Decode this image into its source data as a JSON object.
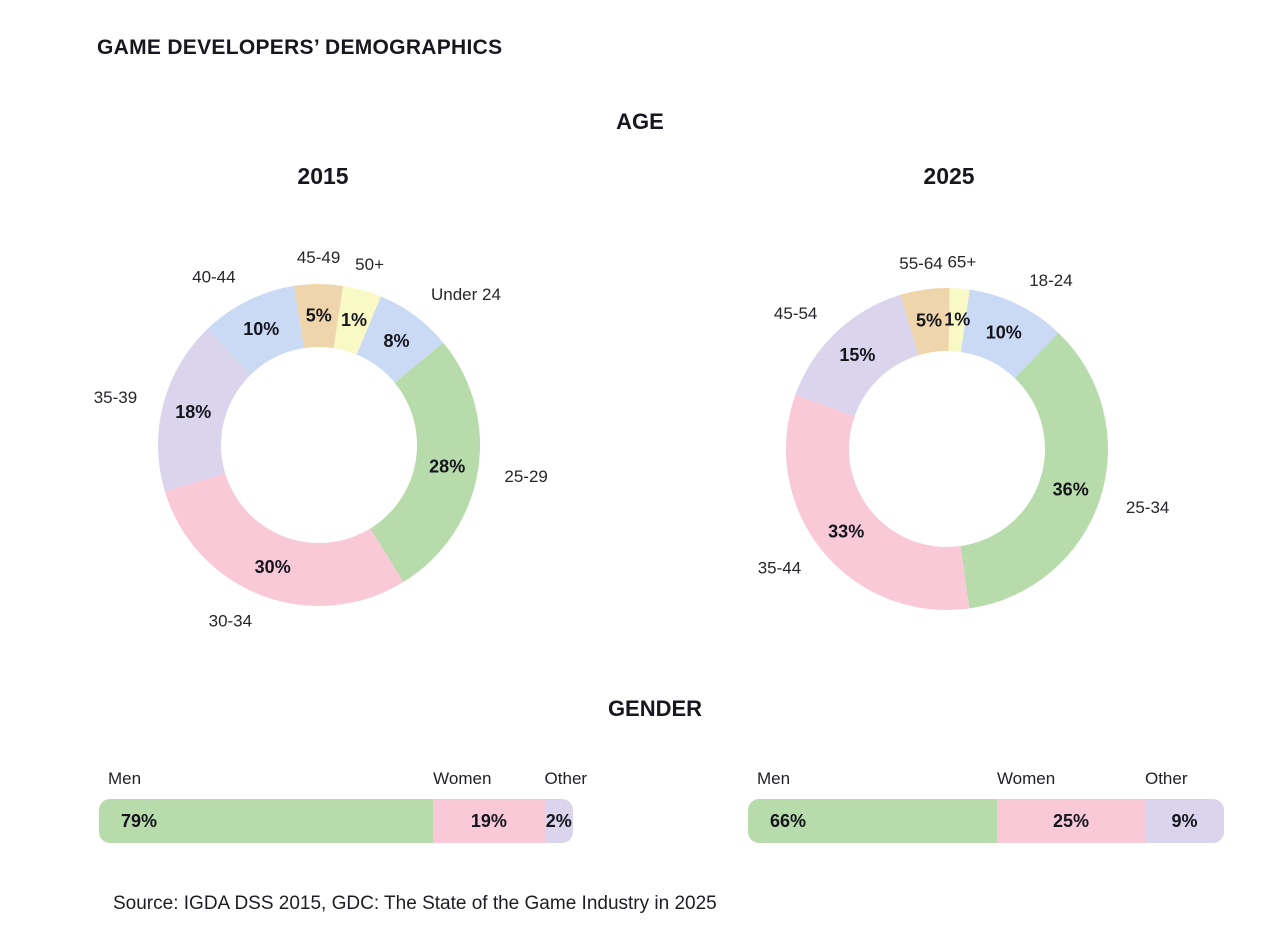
{
  "title": "GAME DEVELOPERS’ DEMOGRAPHICS",
  "sections": {
    "age": {
      "heading": "AGE"
    },
    "gender": {
      "heading": "GENDER"
    }
  },
  "source": "Source: IGDA DSS 2015, GDC: The State of the Game Industry in 2025",
  "palette": {
    "green": "#b7dbaa",
    "pink": "#f9c9d8",
    "lavender": "#dad4ed",
    "blue": "#cadaf5",
    "tan": "#eed5ab",
    "yellow": "#f8f9c4",
    "text_dark": "#15151d",
    "background": "#ffffff"
  },
  "chart_data": [
    {
      "type": "pie",
      "subtype": "donut",
      "section": "AGE",
      "title": "2015",
      "unit": "percent",
      "value_suffix": "%",
      "categories": [
        "Under 24",
        "25-29",
        "30-34",
        "35-39",
        "40-44",
        "45-49",
        "50+"
      ],
      "values": [
        8,
        28,
        30,
        18,
        10,
        5,
        1
      ],
      "colors": [
        "#cadaf5",
        "#b7dbaa",
        "#f9c9d8",
        "#dad4ed",
        "#cadaf5",
        "#eed5ab",
        "#f8f9c4"
      ],
      "rotation_deg": 22.6,
      "min_display_pct": 4,
      "legend_position": "outside-labels"
    },
    {
      "type": "pie",
      "subtype": "donut",
      "section": "AGE",
      "title": "2025",
      "unit": "percent",
      "value_suffix": "%",
      "categories": [
        "18-24",
        "25-34",
        "35-44",
        "45-54",
        "55-64",
        "65+"
      ],
      "values": [
        10,
        36,
        33,
        15,
        5,
        1
      ],
      "colors": [
        "#cadaf5",
        "#b7dbaa",
        "#f9c9d8",
        "#dad4ed",
        "#eed5ab",
        "#f8f9c4"
      ],
      "rotation_deg": 8.1,
      "min_display_pct": 2,
      "legend_position": "outside-labels"
    },
    {
      "type": "bar",
      "subtype": "stacked-horizontal-100",
      "section": "GENDER",
      "title": "2015",
      "unit": "percent",
      "value_suffix": "%",
      "categories": [
        "Men",
        "Women",
        "Other"
      ],
      "values": [
        79,
        19,
        2
      ],
      "display_weights": [
        70.5,
        23.5,
        6
      ],
      "colors": [
        "#b7dbaa",
        "#f9c9d8",
        "#dad4ed"
      ],
      "legend_position": "above-segments"
    },
    {
      "type": "bar",
      "subtype": "stacked-horizontal-100",
      "section": "GENDER",
      "title": "2025",
      "unit": "percent",
      "value_suffix": "%",
      "categories": [
        "Men",
        "Women",
        "Other"
      ],
      "values": [
        66,
        25,
        9
      ],
      "display_weights": [
        52.3,
        31.1,
        16.6
      ],
      "colors": [
        "#b7dbaa",
        "#f9c9d8",
        "#dad4ed"
      ],
      "legend_position": "above-segments"
    }
  ]
}
